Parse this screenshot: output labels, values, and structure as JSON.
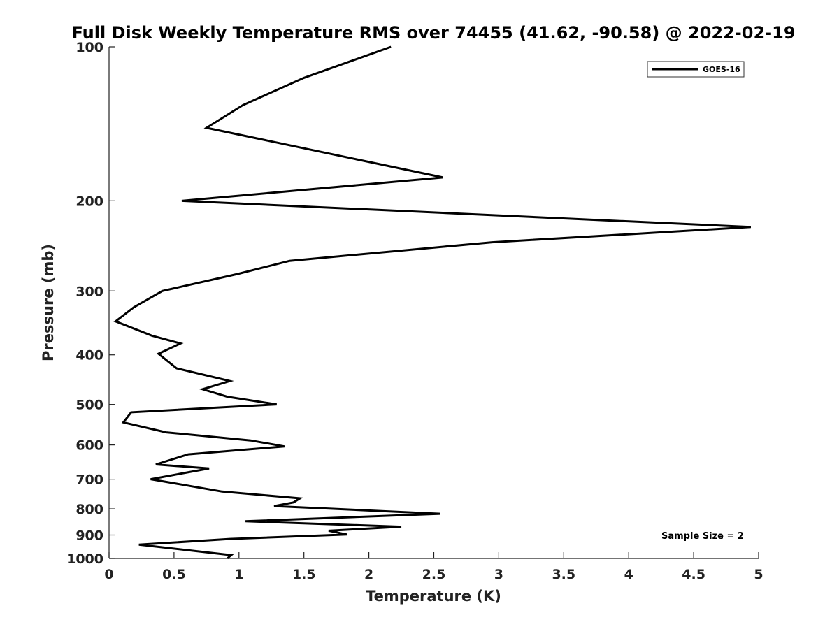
{
  "chart_data": {
    "type": "line",
    "title": "Full Disk Weekly Temperature RMS over 74455 (41.62, -90.58) @ 2022-02-19",
    "xlabel": "Temperature (K)",
    "ylabel": "Pressure (mb)",
    "xlim": [
      0,
      5
    ],
    "ylim": [
      100,
      1000
    ],
    "y_scale": "log",
    "y_reversed": true,
    "xticks": [
      "0",
      "0.5",
      "1",
      "1.5",
      "2",
      "2.5",
      "3",
      "3.5",
      "4",
      "4.5",
      "5"
    ],
    "yticks": [
      "100",
      "200",
      "300",
      "400",
      "500",
      "600",
      "700",
      "800",
      "900",
      "1000"
    ],
    "grid": false,
    "legend_position": "top-right",
    "series": [
      {
        "name": "GOES-16",
        "color": "#000000",
        "points": [
          [
            2.17,
            100
          ],
          [
            1.5,
            115
          ],
          [
            1.03,
            130
          ],
          [
            0.75,
            144
          ],
          [
            2.57,
            180
          ],
          [
            0.56,
            200
          ],
          [
            4.94,
            225
          ],
          [
            2.95,
            241
          ],
          [
            1.39,
            262
          ],
          [
            0.99,
            278
          ],
          [
            0.41,
            300
          ],
          [
            0.19,
            323
          ],
          [
            0.05,
            344
          ],
          [
            0.33,
            367
          ],
          [
            0.55,
            380
          ],
          [
            0.38,
            398
          ],
          [
            0.52,
            425
          ],
          [
            0.93,
            450
          ],
          [
            0.72,
            467
          ],
          [
            0.91,
            483
          ],
          [
            1.29,
            500
          ],
          [
            0.17,
            518
          ],
          [
            0.11,
            542
          ],
          [
            0.44,
            567
          ],
          [
            1.09,
            588
          ],
          [
            1.35,
            604
          ],
          [
            0.61,
            626
          ],
          [
            0.36,
            655
          ],
          [
            0.77,
            667
          ],
          [
            0.59,
            680
          ],
          [
            0.32,
            700
          ],
          [
            0.87,
            740
          ],
          [
            1.47,
            763
          ],
          [
            1.42,
            777
          ],
          [
            1.27,
            790
          ],
          [
            2.55,
            818
          ],
          [
            1.05,
            846
          ],
          [
            2.25,
            867
          ],
          [
            1.69,
            883
          ],
          [
            1.83,
            898
          ],
          [
            0.93,
            916
          ],
          [
            0.23,
            940
          ],
          [
            0.94,
            985
          ],
          [
            0.91,
            1000
          ]
        ]
      }
    ],
    "annotations": [
      "Sample Size = 2"
    ]
  }
}
